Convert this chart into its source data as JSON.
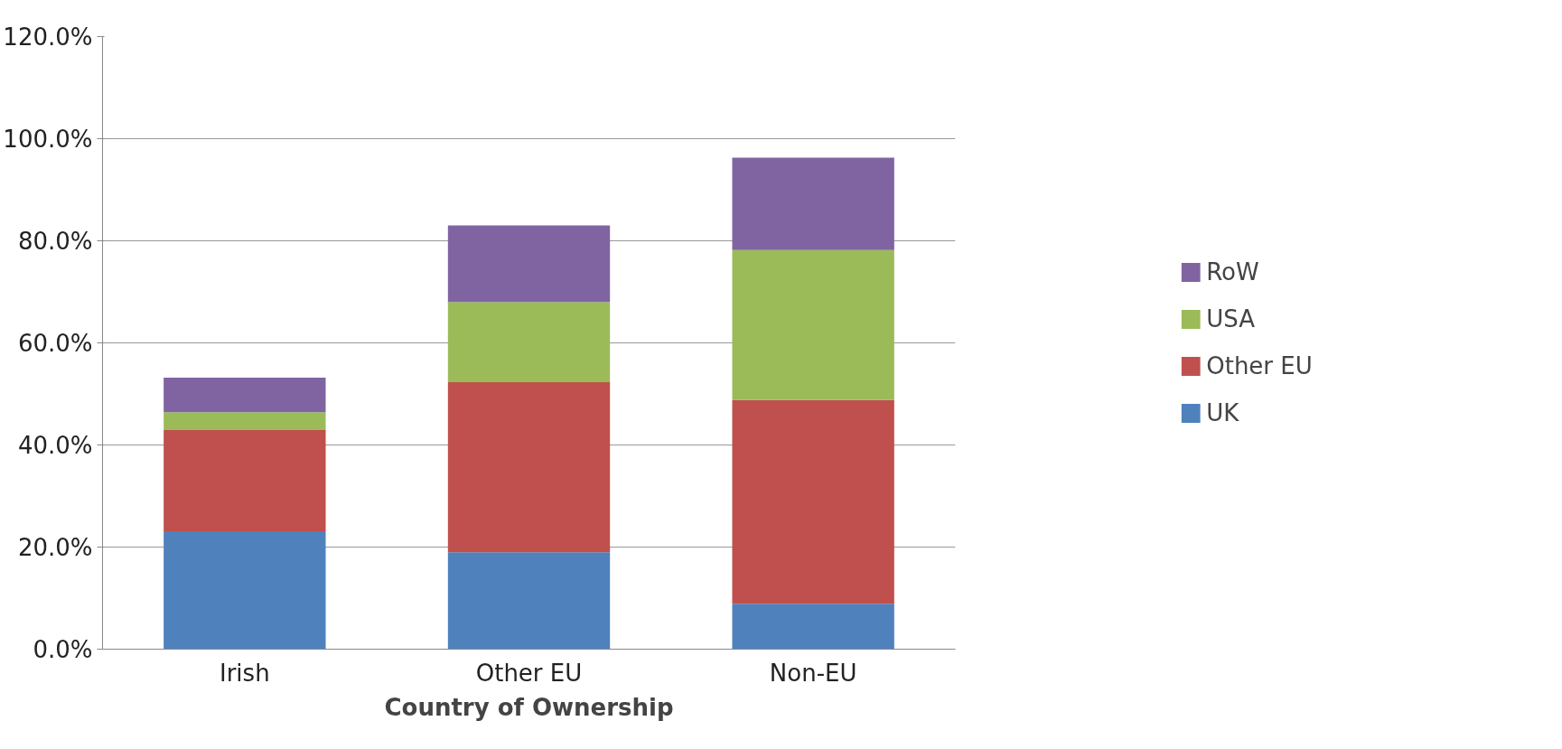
{
  "chart_data": {
    "type": "bar",
    "stacked": true,
    "xlabel": "Country of Ownership",
    "categories": [
      "Irish",
      "Other EU",
      "Non-EU"
    ],
    "series": [
      {
        "name": "UK",
        "color": "#4f81bd",
        "values": [
          23.1,
          19.0,
          8.9
        ]
      },
      {
        "name": "Other EU",
        "color": "#c0504d",
        "values": [
          19.8,
          33.3,
          39.9
        ]
      },
      {
        "name": "USA",
        "color": "#9bbb59",
        "values": [
          3.5,
          15.7,
          29.4
        ]
      },
      {
        "name": "RoW",
        "color": "#8064a2",
        "values": [
          6.8,
          15.0,
          18.1
        ]
      }
    ],
    "ylim": [
      0,
      120
    ],
    "yticks": [
      {
        "value": 0,
        "label": "0.0%"
      },
      {
        "value": 20,
        "label": "20.0%"
      },
      {
        "value": 40,
        "label": "40.0%"
      },
      {
        "value": 60,
        "label": "60.0%"
      },
      {
        "value": 80,
        "label": "80.0%"
      },
      {
        "value": 100,
        "label": "100.0%"
      },
      {
        "value": 120,
        "label": "120.0%"
      }
    ],
    "grid": "y",
    "legend": "right"
  }
}
